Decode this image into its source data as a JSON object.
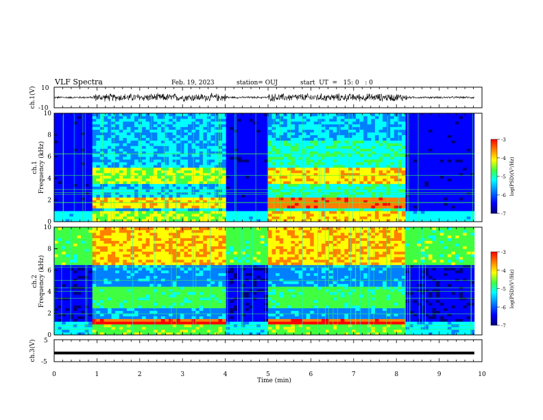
{
  "header": {
    "title": "VLF Spectra",
    "date": "Feb. 19, 2023",
    "station": "station= OUJ",
    "start_ut": "start  UT  =   15: 0   : 0"
  },
  "chart_data": [
    {
      "type": "line",
      "panel": "ch1-waveform",
      "ylabel": "ch.1(V)",
      "ylim": [
        -10,
        10
      ],
      "yticks": [
        "10",
        "-10"
      ],
      "xlim": [
        0,
        10
      ],
      "active_intervals_min": [
        [
          0.92,
          4.05
        ],
        [
          5.0,
          8.25
        ]
      ],
      "quiet_amplitude_v": 1.2,
      "active_amplitude_v": 4.5
    },
    {
      "type": "heatmap",
      "panel": "ch1-spectrogram",
      "ylabel": "ch.1\nFrequency (kHz)",
      "ylim": [
        0,
        10
      ],
      "yticks": [
        "0",
        "2",
        "4",
        "6",
        "8",
        "10"
      ],
      "xlim": [
        0,
        10
      ],
      "colorbar": {
        "label": "log(PSD)(V²/Hz)",
        "range": [
          -7,
          -3
        ],
        "ticks": [
          "-3",
          "-4",
          "-5",
          "-6",
          "-7"
        ]
      }
    },
    {
      "type": "heatmap",
      "panel": "ch2-spectrogram",
      "ylabel": "ch.2\nFrequency (kHz)",
      "ylim": [
        0,
        10
      ],
      "yticks": [
        "0",
        "2",
        "4",
        "6",
        "8",
        "10"
      ],
      "xlim": [
        0,
        10
      ],
      "colorbar": {
        "label": "log(PSD)(V²/Hz)",
        "range": [
          -7,
          -3
        ],
        "ticks": [
          "-3",
          "-4",
          "-5",
          "-6",
          "-7"
        ]
      }
    },
    {
      "type": "line",
      "panel": "ch3-waveform",
      "ylabel": "ch.3(V)",
      "ylim": [
        -5,
        5
      ],
      "yticks": [
        "5",
        "-5"
      ],
      "xlim": [
        0,
        10
      ],
      "constant_level_v": -1.2
    }
  ],
  "xaxis": {
    "label": "Time (min)",
    "ticks": [
      "0",
      "1",
      "2",
      "3",
      "4",
      "5",
      "6",
      "7",
      "8",
      "9",
      "10"
    ]
  },
  "colors": {
    "colormap": [
      "#00007a",
      "#0000ff",
      "#0080ff",
      "#00ffff",
      "#40ff40",
      "#ffff00",
      "#ff8000",
      "#ff0000"
    ]
  }
}
